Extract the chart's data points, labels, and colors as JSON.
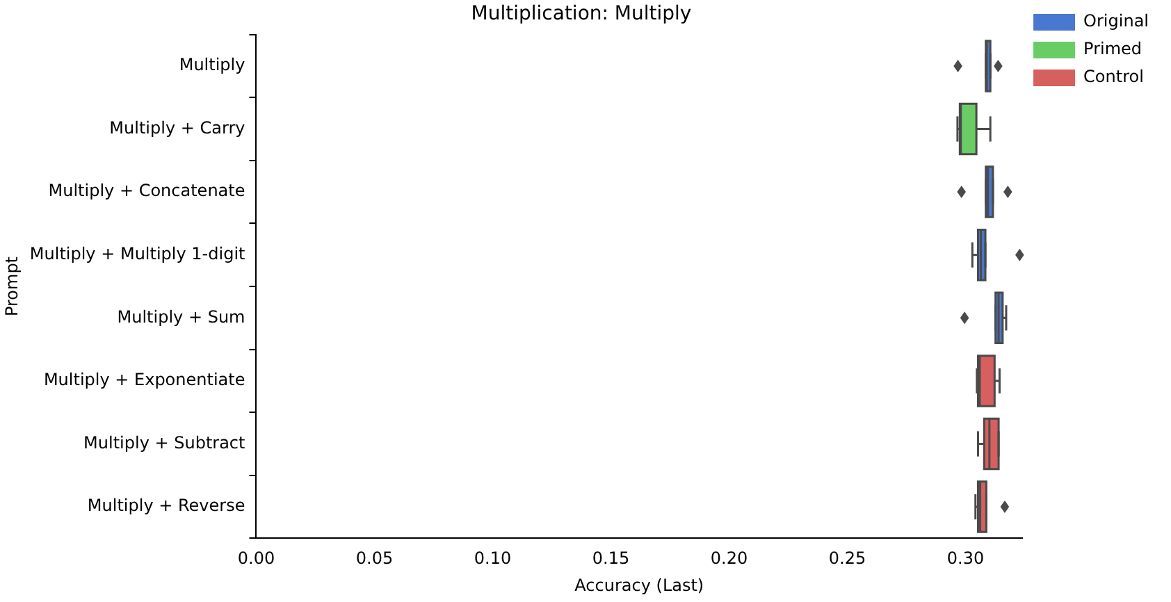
{
  "chart_data": {
    "type": "box",
    "orientation": "horizontal",
    "title": "Multiplication: Multiply",
    "xlabel": "Accuracy (Last)",
    "ylabel": "Prompt",
    "categories": [
      "Multiply",
      "Multiply + Carry",
      "Multiply + Concatenate",
      "Multiply + Multiply 1-digit",
      "Multiply + Sum",
      "Multiply + Exponentiate",
      "Multiply + Subtract",
      "Multiply + Reverse"
    ],
    "xlim": [
      0,
      0.324
    ],
    "xticks": [
      {
        "value": 0,
        "label": "0.00"
      },
      {
        "value": 0.05,
        "label": "0.05"
      },
      {
        "value": 0.1,
        "label": "0.10"
      },
      {
        "value": 0.15,
        "label": "0.15"
      },
      {
        "value": 0.2,
        "label": "0.20"
      },
      {
        "value": 0.25,
        "label": "0.25"
      },
      {
        "value": 0.3,
        "label": "0.30"
      }
    ],
    "grid": false,
    "legend": "top right",
    "marker": "diamond",
    "series": [
      {
        "name": "Original",
        "color": "#4878d0",
        "boxes": [
          {
            "low": 0.3086,
            "q1": 0.3086,
            "median": 0.309,
            "q3": 0.3105,
            "high": 0.3105,
            "outliers": [
              0.2968,
              0.3138
            ]
          },
          null,
          {
            "low": 0.3086,
            "q1": 0.3086,
            "median": 0.3095,
            "q3": 0.3116,
            "high": 0.3116,
            "outliers": [
              0.2983,
              0.3179
            ]
          },
          {
            "low": 0.3029,
            "q1": 0.3053,
            "median": 0.3065,
            "q3": 0.3084,
            "high": 0.3084,
            "outliers": [
              0.3229
            ]
          },
          {
            "low": 0.3127,
            "q1": 0.3127,
            "median": 0.314,
            "q3": 0.3157,
            "high": 0.3172,
            "outliers": [
              0.2996
            ]
          },
          null,
          null,
          null
        ]
      },
      {
        "name": "Primed",
        "color": "#6acc64",
        "boxes": [
          null,
          {
            "low": 0.2966,
            "q1": 0.2976,
            "median": 0.298,
            "q3": 0.3046,
            "high": 0.3105
          },
          null,
          null,
          null,
          null,
          null,
          null
        ]
      },
      {
        "name": "Control",
        "color": "#d65f5f",
        "boxes": [
          null,
          null,
          null,
          null,
          null,
          {
            "low": 0.3048,
            "q1": 0.3053,
            "median": 0.306,
            "q3": 0.3123,
            "high": 0.3144
          },
          {
            "low": 0.3053,
            "q1": 0.3079,
            "median": 0.3101,
            "q3": 0.314,
            "high": 0.314
          },
          {
            "low": 0.3042,
            "q1": 0.3053,
            "median": 0.3062,
            "q3": 0.3088,
            "high": 0.3088,
            "outliers": [
              0.3166
            ]
          }
        ]
      }
    ]
  }
}
